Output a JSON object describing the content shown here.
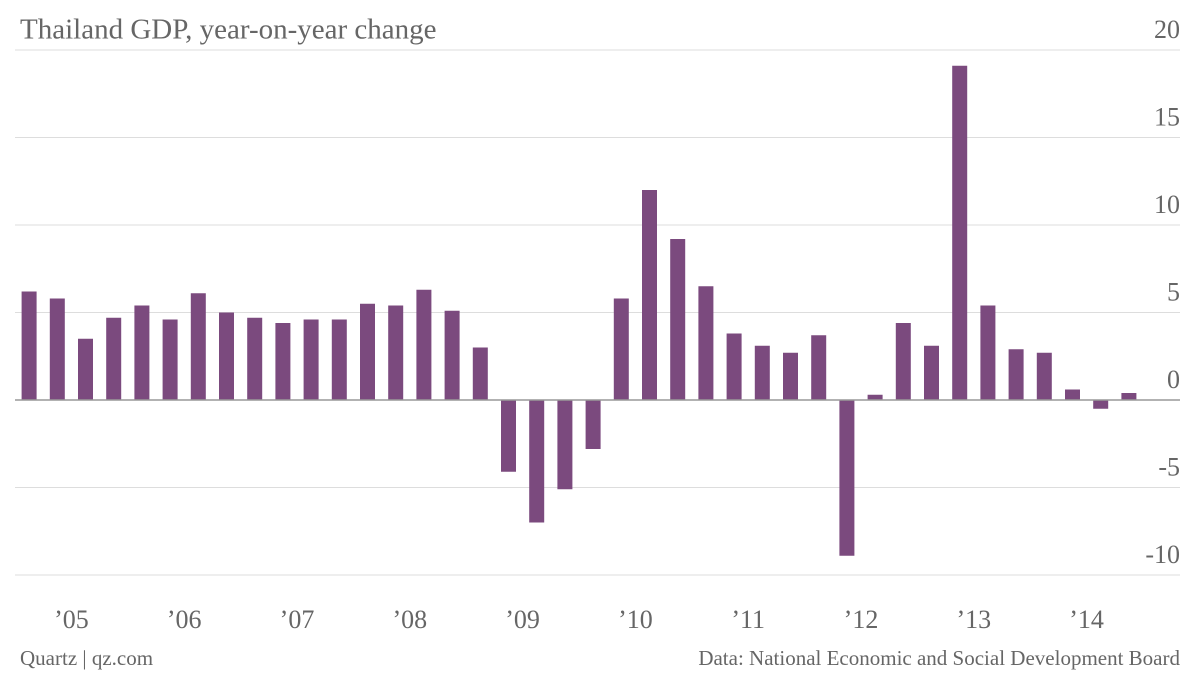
{
  "chart_data": {
    "type": "bar",
    "title": "Thailand GDP, year-on-year change",
    "categories": [
      null,
      "’05",
      null,
      null,
      null,
      "’06",
      null,
      null,
      null,
      "’07",
      null,
      null,
      null,
      "’08",
      null,
      null,
      null,
      "’09",
      null,
      null,
      null,
      "’10",
      null,
      null,
      null,
      "’11",
      null,
      null,
      null,
      "’12",
      null,
      null,
      null,
      "’13",
      null,
      null,
      null,
      "’14",
      null,
      null
    ],
    "values": [
      6.2,
      5.8,
      3.5,
      4.7,
      5.4,
      4.6,
      6.1,
      5.0,
      4.7,
      4.4,
      4.6,
      4.6,
      5.5,
      5.4,
      6.3,
      5.1,
      3.0,
      -4.1,
      -7.0,
      -5.1,
      -2.8,
      5.8,
      12.0,
      9.2,
      6.5,
      3.8,
      3.1,
      2.7,
      3.7,
      -8.9,
      0.3,
      4.4,
      3.1,
      19.1,
      5.4,
      2.9,
      2.7,
      0.6,
      -0.5,
      0.4
    ],
    "color": "#7b4a7e",
    "ylim": [
      -10,
      20
    ],
    "yticks": [
      -10,
      -5,
      0,
      5,
      10,
      15,
      20
    ],
    "grid": true,
    "source": "Data: National Economic and Social Development Board",
    "credit": "Quartz | qz.com"
  }
}
